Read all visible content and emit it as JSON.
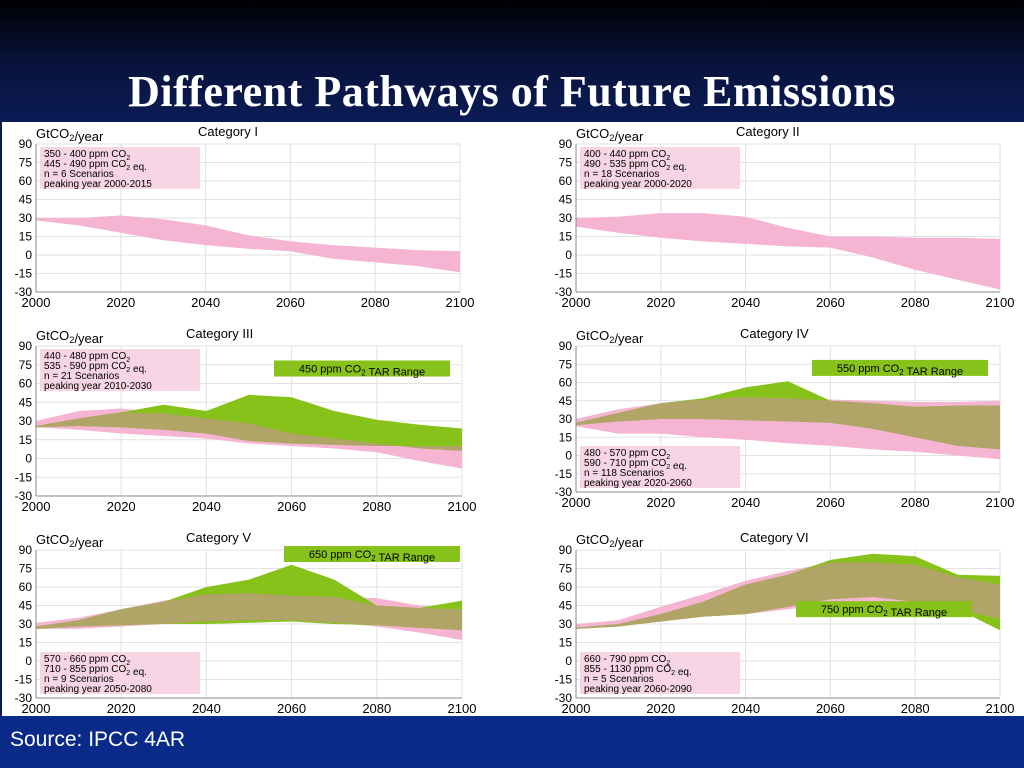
{
  "slide": {
    "title": "Different Pathways of Future Emissions",
    "source": "Source: IPCC 4AR"
  },
  "colors": {
    "pink": "#f4b4d2",
    "green": "#86c21a",
    "overlap": "#b0a467",
    "label_pink_bg": "#f7d5e4",
    "tar_label_bg": "#86c21a"
  },
  "chart_data": [
    {
      "type": "area",
      "title": "Category I",
      "ylabel": "GtCO2/year",
      "xlim": [
        2000,
        2100
      ],
      "ylim": [
        -30,
        90
      ],
      "xticks": [
        2000,
        2020,
        2040,
        2060,
        2080,
        2100
      ],
      "yticks": [
        -30,
        -15,
        0,
        15,
        30,
        45,
        60,
        75,
        90
      ],
      "info": [
        "350 - 400 ppm CO2",
        "445 - 490 ppm CO2 eq.",
        "n = 6 Scenarios",
        "peaking year 2000-2015"
      ],
      "info_pos": "top-left",
      "series": [
        {
          "color": "pink",
          "x": [
            2000,
            2010,
            2020,
            2030,
            2040,
            2050,
            2060,
            2070,
            2080,
            2090,
            2100
          ],
          "upper": [
            30,
            30,
            32,
            29,
            24,
            16,
            11,
            8,
            6,
            4,
            3
          ],
          "lower": [
            28,
            24,
            18,
            12,
            8,
            5,
            3,
            -3,
            -6,
            -9,
            -14
          ]
        }
      ]
    },
    {
      "type": "area",
      "title": "Category II",
      "ylabel": "GtCO2/year",
      "xlim": [
        2000,
        2100
      ],
      "ylim": [
        -30,
        90
      ],
      "xticks": [
        2000,
        2020,
        2040,
        2060,
        2080,
        2100
      ],
      "yticks": [
        -30,
        -15,
        0,
        15,
        30,
        45,
        60,
        75,
        90
      ],
      "info": [
        "400 - 440 ppm CO2",
        "490 - 535 ppm CO2 eq.",
        "n = 18 Scenarios",
        "peaking year 2000-2020"
      ],
      "info_pos": "top-left",
      "series": [
        {
          "color": "pink",
          "x": [
            2000,
            2010,
            2020,
            2030,
            2040,
            2050,
            2060,
            2070,
            2080,
            2090,
            2100
          ],
          "upper": [
            30,
            31,
            34,
            34,
            31,
            22,
            15,
            15,
            14,
            14,
            13
          ],
          "lower": [
            23,
            18,
            14,
            11,
            9,
            7,
            6,
            -2,
            -12,
            -20,
            -28
          ]
        }
      ]
    },
    {
      "type": "area",
      "title": "Category III",
      "ylabel": "GtCO2/year",
      "xlim": [
        2000,
        2100
      ],
      "ylim": [
        -30,
        90
      ],
      "xticks": [
        2000,
        2020,
        2040,
        2060,
        2080,
        2100
      ],
      "yticks": [
        -30,
        -15,
        0,
        15,
        30,
        45,
        60,
        75,
        90
      ],
      "info": [
        "440 - 480 ppm CO2",
        "535 - 590 ppm CO2 eq.",
        "n = 21 Scenarios",
        "peaking year 2010-2030"
      ],
      "info_pos": "top-left",
      "tar_label": "450 ppm CO2 TAR Range",
      "tar_pos": "upper-right",
      "series": [
        {
          "color": "pink",
          "x": [
            2000,
            2010,
            2020,
            2030,
            2040,
            2050,
            2060,
            2070,
            2080,
            2090,
            2100
          ],
          "upper": [
            30,
            38,
            40,
            36,
            32,
            28,
            20,
            16,
            12,
            8,
            6
          ],
          "lower": [
            25,
            23,
            20,
            18,
            16,
            12,
            10,
            8,
            5,
            -2,
            -8
          ]
        },
        {
          "color": "green",
          "x": [
            2000,
            2010,
            2020,
            2030,
            2040,
            2050,
            2060,
            2070,
            2080,
            2090,
            2100
          ],
          "upper": [
            26,
            32,
            37,
            43,
            38,
            51,
            49,
            38,
            31,
            27,
            24
          ],
          "lower": [
            25,
            26,
            25,
            23,
            20,
            14,
            12,
            11,
            10,
            10,
            10
          ]
        }
      ]
    },
    {
      "type": "area",
      "title": "Category IV",
      "ylabel": "GtCO2/year",
      "xlim": [
        2000,
        2100
      ],
      "ylim": [
        -30,
        90
      ],
      "xticks": [
        2000,
        2020,
        2040,
        2060,
        2080,
        2100
      ],
      "yticks": [
        -30,
        -15,
        0,
        15,
        30,
        45,
        60,
        75,
        90
      ],
      "info": [
        "480 - 570 ppm CO2",
        "590 - 710 ppm CO2 eq.",
        "n = 118 Scenarios",
        "peaking year 2020-2060"
      ],
      "info_pos": "bottom-left",
      "tar_label": "550 ppm CO2 TAR Range",
      "tar_pos": "upper-right",
      "series": [
        {
          "color": "pink",
          "x": [
            2000,
            2010,
            2020,
            2030,
            2040,
            2050,
            2060,
            2070,
            2080,
            2090,
            2100
          ],
          "upper": [
            30,
            38,
            43,
            46,
            48,
            47,
            46,
            45,
            44,
            44,
            45
          ],
          "lower": [
            24,
            18,
            18,
            15,
            13,
            10,
            8,
            5,
            3,
            0,
            -3
          ]
        },
        {
          "color": "green",
          "x": [
            2000,
            2010,
            2020,
            2030,
            2040,
            2050,
            2060,
            2070,
            2080,
            2090,
            2100
          ],
          "upper": [
            27,
            35,
            43,
            47,
            56,
            61,
            45,
            43,
            40,
            41,
            41
          ],
          "lower": [
            25,
            28,
            30,
            30,
            29,
            28,
            27,
            22,
            15,
            8,
            5
          ]
        }
      ]
    },
    {
      "type": "area",
      "title": "Category V",
      "ylabel": "GtCO2/year",
      "xlim": [
        2000,
        2100
      ],
      "ylim": [
        -30,
        90
      ],
      "xticks": [
        2000,
        2020,
        2040,
        2060,
        2080,
        2100
      ],
      "yticks": [
        -30,
        -15,
        0,
        15,
        30,
        45,
        60,
        75,
        90
      ],
      "info": [
        "570 - 660 ppm CO2",
        "710 - 855 ppm CO2 eq.",
        "n = 9 Scenarios",
        "peaking year 2050-2080"
      ],
      "info_pos": "bottom-left",
      "tar_label": "650 ppm CO2 TAR Range",
      "tar_pos": "top-right",
      "series": [
        {
          "color": "pink",
          "x": [
            2000,
            2010,
            2020,
            2030,
            2040,
            2050,
            2060,
            2070,
            2080,
            2090,
            2100
          ],
          "upper": [
            31,
            35,
            42,
            49,
            54,
            55,
            53,
            52,
            51,
            45,
            42
          ],
          "lower": [
            26,
            26,
            28,
            30,
            32,
            33,
            33,
            31,
            28,
            23,
            17
          ]
        },
        {
          "color": "green",
          "x": [
            2000,
            2010,
            2020,
            2030,
            2040,
            2050,
            2060,
            2070,
            2080,
            2090,
            2100
          ],
          "upper": [
            28,
            33,
            42,
            48,
            60,
            66,
            78,
            66,
            45,
            43,
            49
          ],
          "lower": [
            26,
            28,
            29,
            30,
            30,
            31,
            32,
            30,
            29,
            27,
            25
          ]
        }
      ]
    },
    {
      "type": "area",
      "title": "Category VI",
      "ylabel": "GtCO2/year",
      "xlim": [
        2000,
        2100
      ],
      "ylim": [
        -30,
        90
      ],
      "xticks": [
        2000,
        2020,
        2040,
        2060,
        2080,
        2100
      ],
      "yticks": [
        -30,
        -15,
        0,
        15,
        30,
        45,
        60,
        75,
        90
      ],
      "info": [
        "660 - 790 ppm CO2",
        "855 - 1130 ppm CO2 eq.",
        "n = 5 Scenarios",
        "peaking year 2060-2090"
      ],
      "info_pos": "bottom-left",
      "tar_label": "750 ppm CO2 TAR Range",
      "tar_pos": "right",
      "series": [
        {
          "color": "pink",
          "x": [
            2000,
            2010,
            2020,
            2030,
            2040,
            2050,
            2060,
            2070,
            2080,
            2090,
            2100
          ],
          "upper": [
            30,
            33,
            44,
            54,
            65,
            73,
            80,
            80,
            78,
            68,
            62
          ],
          "lower": [
            26,
            28,
            32,
            36,
            38,
            42,
            46,
            46,
            44,
            40,
            34
          ]
        },
        {
          "color": "green",
          "x": [
            2000,
            2010,
            2020,
            2030,
            2040,
            2050,
            2060,
            2070,
            2080,
            2090,
            2100
          ],
          "upper": [
            27,
            30,
            38,
            48,
            62,
            70,
            82,
            87,
            85,
            70,
            69
          ],
          "lower": [
            26,
            28,
            32,
            36,
            38,
            44,
            50,
            52,
            48,
            42,
            25
          ]
        }
      ]
    }
  ]
}
